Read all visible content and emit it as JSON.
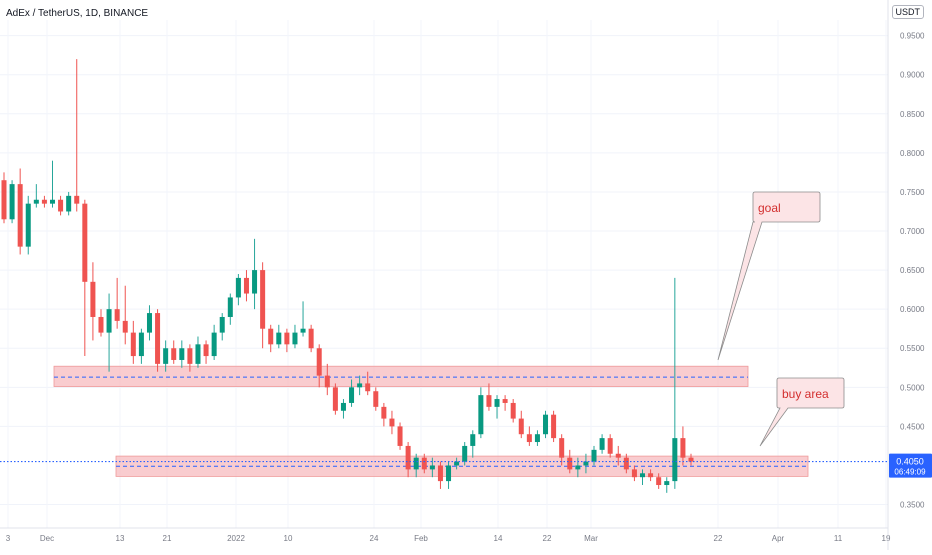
{
  "header": {
    "symbol_title": "AdEx / TetherUS, 1D, BINANCE",
    "currency": "USDT"
  },
  "colors": {
    "up": "#26a69a",
    "up_body": "#089981",
    "down": "#ef5350",
    "zone_fill": "#f7b6bb",
    "dashed_line": "#2962ff",
    "price_label_bg": "#2962ff"
  },
  "price_label": {
    "price": "0.4050",
    "countdown": "06:49:09"
  },
  "annotations": {
    "goal_label": "goal",
    "buy_area_label": "buy area"
  },
  "chart_data": {
    "type": "candlestick",
    "title": "AdEx / TetherUS, 1D, BINANCE",
    "ylim": [
      0.32,
      0.97
    ],
    "y_ticks": [
      "0.9500",
      "0.9000",
      "0.8500",
      "0.8000",
      "0.7500",
      "0.7000",
      "0.6500",
      "0.6000",
      "0.5500",
      "0.5000",
      "0.4500",
      "0.3500"
    ],
    "x_ticks": [
      "3",
      "Dec",
      "13",
      "21",
      "2022",
      "10",
      "24",
      "Feb",
      "14",
      "22",
      "Mar",
      "22",
      "Apr",
      "11",
      "19"
    ],
    "current_price": 0.405,
    "zones": [
      {
        "name": "resistance",
        "low": 0.501,
        "high": 0.527,
        "mid": 0.513
      },
      {
        "name": "buy area",
        "low": 0.386,
        "high": 0.412,
        "mid": 0.399
      }
    ],
    "candles": [
      [
        0.765,
        0.775,
        0.71,
        0.715
      ],
      [
        0.715,
        0.765,
        0.71,
        0.76
      ],
      [
        0.76,
        0.78,
        0.67,
        0.68
      ],
      [
        0.68,
        0.745,
        0.67,
        0.735
      ],
      [
        0.735,
        0.76,
        0.73,
        0.74
      ],
      [
        0.74,
        0.745,
        0.73,
        0.735
      ],
      [
        0.735,
        0.79,
        0.73,
        0.74
      ],
      [
        0.74,
        0.745,
        0.72,
        0.725
      ],
      [
        0.725,
        0.75,
        0.72,
        0.745
      ],
      [
        0.745,
        0.92,
        0.725,
        0.735
      ],
      [
        0.735,
        0.74,
        0.54,
        0.635
      ],
      [
        0.635,
        0.66,
        0.56,
        0.59
      ],
      [
        0.59,
        0.6,
        0.565,
        0.57
      ],
      [
        0.57,
        0.62,
        0.52,
        0.6
      ],
      [
        0.6,
        0.64,
        0.575,
        0.585
      ],
      [
        0.585,
        0.63,
        0.555,
        0.57
      ],
      [
        0.57,
        0.585,
        0.53,
        0.54
      ],
      [
        0.54,
        0.575,
        0.53,
        0.57
      ],
      [
        0.57,
        0.605,
        0.56,
        0.595
      ],
      [
        0.595,
        0.6,
        0.52,
        0.53
      ],
      [
        0.53,
        0.56,
        0.52,
        0.55
      ],
      [
        0.55,
        0.56,
        0.53,
        0.535
      ],
      [
        0.535,
        0.56,
        0.525,
        0.55
      ],
      [
        0.55,
        0.555,
        0.52,
        0.53
      ],
      [
        0.53,
        0.565,
        0.525,
        0.555
      ],
      [
        0.555,
        0.56,
        0.53,
        0.54
      ],
      [
        0.54,
        0.58,
        0.535,
        0.57
      ],
      [
        0.57,
        0.595,
        0.56,
        0.59
      ],
      [
        0.59,
        0.62,
        0.58,
        0.615
      ],
      [
        0.615,
        0.645,
        0.605,
        0.64
      ],
      [
        0.64,
        0.65,
        0.61,
        0.62
      ],
      [
        0.62,
        0.69,
        0.6,
        0.65
      ],
      [
        0.65,
        0.66,
        0.55,
        0.575
      ],
      [
        0.575,
        0.58,
        0.545,
        0.555
      ],
      [
        0.555,
        0.58,
        0.55,
        0.57
      ],
      [
        0.57,
        0.575,
        0.545,
        0.555
      ],
      [
        0.555,
        0.58,
        0.55,
        0.57
      ],
      [
        0.57,
        0.61,
        0.565,
        0.575
      ],
      [
        0.575,
        0.58,
        0.545,
        0.55
      ],
      [
        0.55,
        0.555,
        0.5,
        0.515
      ],
      [
        0.515,
        0.53,
        0.49,
        0.5
      ],
      [
        0.5,
        0.505,
        0.465,
        0.47
      ],
      [
        0.47,
        0.485,
        0.46,
        0.48
      ],
      [
        0.48,
        0.51,
        0.475,
        0.5
      ],
      [
        0.5,
        0.515,
        0.49,
        0.505
      ],
      [
        0.505,
        0.52,
        0.49,
        0.495
      ],
      [
        0.495,
        0.5,
        0.47,
        0.475
      ],
      [
        0.475,
        0.48,
        0.45,
        0.46
      ],
      [
        0.46,
        0.47,
        0.44,
        0.45
      ],
      [
        0.45,
        0.455,
        0.42,
        0.425
      ],
      [
        0.425,
        0.43,
        0.385,
        0.395
      ],
      [
        0.395,
        0.415,
        0.385,
        0.41
      ],
      [
        0.41,
        0.415,
        0.39,
        0.395
      ],
      [
        0.395,
        0.41,
        0.385,
        0.4
      ],
      [
        0.4,
        0.405,
        0.37,
        0.38
      ],
      [
        0.38,
        0.405,
        0.37,
        0.4
      ],
      [
        0.4,
        0.41,
        0.395,
        0.405
      ],
      [
        0.405,
        0.43,
        0.4,
        0.425
      ],
      [
        0.425,
        0.445,
        0.41,
        0.44
      ],
      [
        0.44,
        0.5,
        0.435,
        0.49
      ],
      [
        0.49,
        0.505,
        0.47,
        0.475
      ],
      [
        0.475,
        0.49,
        0.46,
        0.485
      ],
      [
        0.485,
        0.49,
        0.47,
        0.48
      ],
      [
        0.48,
        0.485,
        0.455,
        0.46
      ],
      [
        0.46,
        0.47,
        0.435,
        0.44
      ],
      [
        0.44,
        0.45,
        0.425,
        0.43
      ],
      [
        0.43,
        0.445,
        0.425,
        0.44
      ],
      [
        0.44,
        0.47,
        0.435,
        0.465
      ],
      [
        0.465,
        0.47,
        0.43,
        0.435
      ],
      [
        0.435,
        0.44,
        0.4,
        0.41
      ],
      [
        0.41,
        0.42,
        0.39,
        0.395
      ],
      [
        0.395,
        0.41,
        0.385,
        0.4
      ],
      [
        0.4,
        0.415,
        0.39,
        0.405
      ],
      [
        0.405,
        0.425,
        0.4,
        0.42
      ],
      [
        0.42,
        0.44,
        0.415,
        0.435
      ],
      [
        0.435,
        0.44,
        0.41,
        0.415
      ],
      [
        0.415,
        0.425,
        0.4,
        0.41
      ],
      [
        0.41,
        0.415,
        0.39,
        0.395
      ],
      [
        0.395,
        0.4,
        0.38,
        0.385
      ],
      [
        0.385,
        0.395,
        0.375,
        0.39
      ],
      [
        0.39,
        0.395,
        0.38,
        0.385
      ],
      [
        0.385,
        0.39,
        0.37,
        0.375
      ],
      [
        0.375,
        0.385,
        0.365,
        0.38
      ],
      [
        0.38,
        0.64,
        0.37,
        0.435
      ],
      [
        0.435,
        0.45,
        0.4,
        0.41
      ],
      [
        0.41,
        0.415,
        0.4,
        0.405
      ]
    ]
  }
}
